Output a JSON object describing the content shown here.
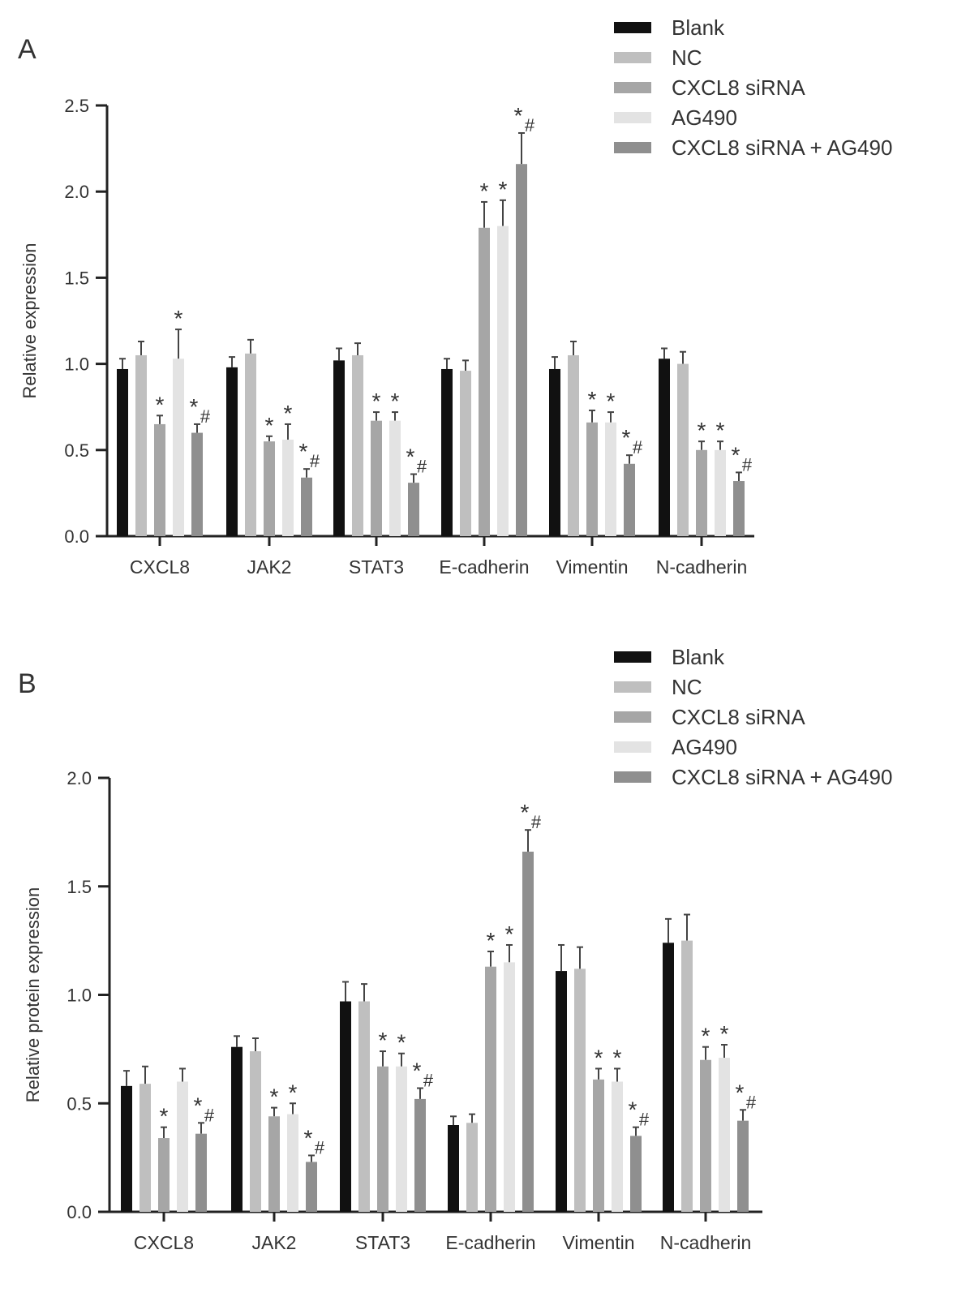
{
  "chart_data": [
    {
      "type": "bar",
      "panel_label": "A",
      "ylabel": "Relative expression",
      "xlabel": "",
      "ylim": [
        0,
        2.5
      ],
      "yticks": [
        "0.0",
        "0.5",
        "1.0",
        "1.5",
        "2.0",
        "2.5"
      ],
      "categories": [
        "CXCL8",
        "JAK2",
        "STAT3",
        "E-cadherin",
        "Vimentin",
        "N-cadherin"
      ],
      "legend_position": "top-right",
      "grid": false,
      "series": [
        {
          "name": "Blank",
          "color": "#111111",
          "values": [
            0.97,
            0.98,
            1.02,
            0.97,
            0.97,
            1.03
          ],
          "errors": [
            0.06,
            0.06,
            0.07,
            0.06,
            0.07,
            0.06
          ],
          "annotations": [
            "",
            "",
            "",
            "",
            "",
            ""
          ]
        },
        {
          "name": "NC",
          "color": "#bfbfbf",
          "values": [
            1.05,
            1.06,
            1.05,
            0.96,
            1.05,
            1.0
          ],
          "errors": [
            0.08,
            0.08,
            0.07,
            0.06,
            0.08,
            0.07
          ],
          "annotations": [
            "",
            "",
            "",
            "",
            "",
            ""
          ]
        },
        {
          "name": "CXCL8 siRNA",
          "color": "#a6a6a6",
          "values": [
            0.65,
            0.55,
            0.67,
            1.79,
            0.66,
            0.5
          ],
          "errors": [
            0.05,
            0.03,
            0.05,
            0.15,
            0.07,
            0.05
          ],
          "annotations": [
            "*",
            "*",
            "*",
            "*",
            "*",
            "*"
          ]
        },
        {
          "name": "AG490",
          "color": "#e3e3e3",
          "values": [
            1.03,
            0.56,
            0.67,
            1.8,
            0.66,
            0.5
          ],
          "errors": [
            0.17,
            0.09,
            0.05,
            0.15,
            0.06,
            0.05
          ],
          "annotations": [
            "*",
            "*",
            "*",
            "*",
            "*",
            "*"
          ]
        },
        {
          "name": "CXCL8 siRNA + AG490",
          "color": "#8f8f8f",
          "values": [
            0.6,
            0.34,
            0.31,
            2.16,
            0.42,
            0.32
          ],
          "errors": [
            0.05,
            0.05,
            0.05,
            0.18,
            0.05,
            0.05
          ],
          "annotations": [
            "*#",
            "*#",
            "*#",
            "*#",
            "*#",
            "*#"
          ]
        }
      ]
    },
    {
      "type": "bar",
      "panel_label": "B",
      "ylabel": "Relative protein expression",
      "xlabel": "",
      "ylim": [
        0,
        2.0
      ],
      "yticks": [
        "0.0",
        "0.5",
        "1.0",
        "1.5",
        "2.0"
      ],
      "categories": [
        "CXCL8",
        "JAK2",
        "STAT3",
        "E-cadherin",
        "Vimentin",
        "N-cadherin"
      ],
      "legend_position": "top-right",
      "grid": false,
      "series": [
        {
          "name": "Blank",
          "color": "#111111",
          "values": [
            0.58,
            0.76,
            0.97,
            0.4,
            1.11,
            1.24
          ],
          "errors": [
            0.07,
            0.05,
            0.09,
            0.04,
            0.12,
            0.11
          ],
          "annotations": [
            "",
            "",
            "",
            "",
            "",
            ""
          ]
        },
        {
          "name": "NC",
          "color": "#bfbfbf",
          "values": [
            0.59,
            0.74,
            0.97,
            0.41,
            1.12,
            1.25
          ],
          "errors": [
            0.08,
            0.06,
            0.08,
            0.04,
            0.1,
            0.12
          ],
          "annotations": [
            "",
            "",
            "",
            "",
            "",
            ""
          ]
        },
        {
          "name": "CXCL8 siRNA",
          "color": "#a6a6a6",
          "values": [
            0.34,
            0.44,
            0.67,
            1.13,
            0.61,
            0.7
          ],
          "errors": [
            0.05,
            0.04,
            0.07,
            0.07,
            0.05,
            0.06
          ],
          "annotations": [
            "*",
            "*",
            "*",
            "*",
            "*",
            "*"
          ]
        },
        {
          "name": "AG490",
          "color": "#e3e3e3",
          "values": [
            0.6,
            0.45,
            0.67,
            1.15,
            0.6,
            0.71
          ],
          "errors": [
            0.06,
            0.05,
            0.06,
            0.08,
            0.06,
            0.06
          ],
          "annotations": [
            "",
            "*",
            "*",
            "*",
            "*",
            "*"
          ]
        },
        {
          "name": "CXCL8 siRNA + AG490",
          "color": "#8f8f8f",
          "values": [
            0.36,
            0.23,
            0.52,
            1.66,
            0.35,
            0.42
          ],
          "errors": [
            0.05,
            0.03,
            0.05,
            0.1,
            0.04,
            0.05
          ],
          "annotations": [
            "*#",
            "*#",
            "*#",
            "*#",
            "*#",
            "*#"
          ]
        }
      ]
    }
  ]
}
